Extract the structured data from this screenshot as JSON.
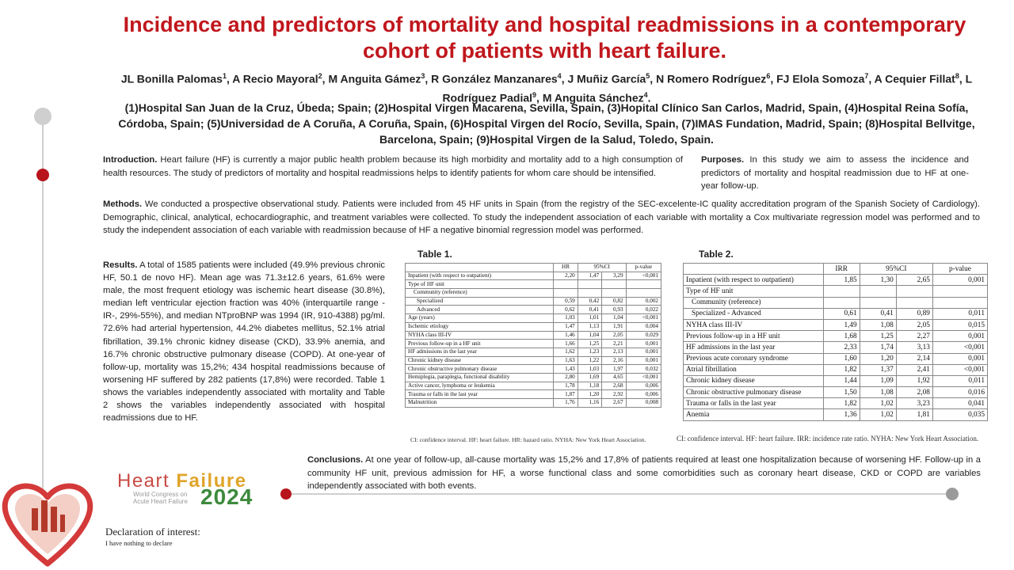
{
  "title": "Incidence and predictors of mortality and hospital readmissions in a contemporary cohort of patients with heart failure.",
  "authors": [
    {
      "name": "JL Bonilla Palomas",
      "sup": "1"
    },
    {
      "name": "A Recio Mayoral",
      "sup": "2"
    },
    {
      "name": "M Anguita Gámez",
      "sup": "3"
    },
    {
      "name": "R González Manzanares",
      "sup": "4"
    },
    {
      "name": "J Muñiz García",
      "sup": "5"
    },
    {
      "name": "N Romero Rodríguez",
      "sup": "6"
    },
    {
      "name": "FJ Elola Somoza",
      "sup": "7"
    },
    {
      "name": "A Cequier Fillat",
      "sup": "8"
    },
    {
      "name": "L Rodríguez Padial",
      "sup": "9"
    },
    {
      "name": "M Anguita Sánchez",
      "sup": "4"
    }
  ],
  "affiliations": "(1)Hospital San Juan de la Cruz, Úbeda; Spain; (2)Hospital Virgen Macarena, Sevilla, Spain, (3)Hopital Clínico San Carlos, Madrid, Spain, (4)Hospital Reina Sofía, Córdoba, Spain; (5)Universidad de A Coruña, A Coruña, Spain, (6)Hospital Virgen del Rocío, Sevilla, Spain, (7)IMAS Fundation, Madrid, Spain; (8)Hospital Bellvitge, Barcelona, Spain; (9)Hospital Virgen de la Salud, Toledo, Spain.",
  "introduction": {
    "heading": "Introduction.",
    "text": "Heart failure (HF) is currently a major public health problem because its high morbidity and mortality add to a high consumption of health resources. The study of predictors of mortality and hospital readmissions helps to identify patients for whom care should be intensified."
  },
  "purposes": {
    "heading": "Purposes.",
    "text": "In this study we aim to assess the incidence and predictors of mortality and hospital readmission due to HF at one-year follow-up."
  },
  "methods": {
    "heading": "Methods.",
    "text": "We conducted a prospective observational study. Patients were included from 45 HF units in Spain (from the registry of the SEC-excelente-IC quality accreditation program of the Spanish Society of Cardiology). Demographic, clinical, analytical, echocardiographic, and treatment variables were collected. To study the independent association of each variable with mortality a Cox multivariate regression model was performed and to study the independent association of each variable with readmission because of HF a negative binomial regression model was performed."
  },
  "results": {
    "heading": "Results.",
    "text": "A total of 1585 patients were included (49.9% previous chronic HF, 50.1 de novo HF). Mean age was 71.3±12.6 years, 61.6% were male, the most frequent etiology was ischemic heart disease (30.8%), median left ventricular ejection fraction was 40% (interquartile range -IR-, 29%-55%), and median NTproBNP was 1994 (IR, 910-4388) pg/ml. 72.6% had arterial hypertension, 44.2% diabetes mellitus, 52.1% atrial fibrillation, 39.1% chronic kidney disease (CKD), 33.9% anemia, and 16.7% chronic obstructive pulmonary disease (COPD). At one-year of follow-up, mortality was 15,2%; 434 hospital readmissions because of worsening HF suffered by 282 patients (17,8%) were recorded. Table 1 shows the variables independently associated with mortality and Table 2 shows the variables independently associated with hospital readmissions due to HF."
  },
  "table1": {
    "caption": "Table 1.",
    "headers": [
      "",
      "HR",
      "95%CI",
      "p-value"
    ],
    "rows": [
      {
        "label": "Inpatient (with respect to outpatient)",
        "indent": 0,
        "v": [
          "2,20",
          "1,47",
          "3,29",
          "<0,001"
        ]
      },
      {
        "label": "Type of HF unit",
        "indent": 0,
        "v": [
          "",
          "",
          "",
          ""
        ]
      },
      {
        "label": "Community (reference)",
        "indent": 1,
        "v": [
          "",
          "",
          "",
          ""
        ]
      },
      {
        "label": "Specialized",
        "indent": 2,
        "v": [
          "0,59",
          "0,42",
          "0,82",
          "0,002"
        ]
      },
      {
        "label": "Advanced",
        "indent": 2,
        "v": [
          "0,62",
          "0,41",
          "0,93",
          "0,022"
        ]
      },
      {
        "label": "Age (years)",
        "indent": 0,
        "v": [
          "1,03",
          "1,01",
          "1,04",
          "<0,001"
        ]
      },
      {
        "label": "Ischemic etiology",
        "indent": 0,
        "v": [
          "1,47",
          "1,13",
          "1,91",
          "0,004"
        ]
      },
      {
        "label": "NYHA class III-IV",
        "indent": 0,
        "v": [
          "1,46",
          "1,04",
          "2,05",
          "0,029"
        ]
      },
      {
        "label": "Previous follow-up in a HF unit",
        "indent": 0,
        "v": [
          "1,66",
          "1,25",
          "2,21",
          "0,001"
        ]
      },
      {
        "label": "HF admissions in the last year",
        "indent": 0,
        "v": [
          "1,62",
          "1,23",
          "2,13",
          "0,001"
        ]
      },
      {
        "label": "Chronic kidney disease",
        "indent": 0,
        "v": [
          "1,63",
          "1,22",
          "2,16",
          "0,001"
        ]
      },
      {
        "label": "Chronic obstructive pulmonary disease",
        "indent": 0,
        "v": [
          "1,43",
          "1,03",
          "1,97",
          "0,032"
        ]
      },
      {
        "label": "Hemiplegia, paraplegia, functional disability",
        "indent": 0,
        "v": [
          "2,80",
          "1,69",
          "4,65",
          "<0,001"
        ]
      },
      {
        "label": "Active cancer, lymphoma or leukemia",
        "indent": 0,
        "v": [
          "1,78",
          "1,18",
          "2,68",
          "0,006"
        ]
      },
      {
        "label": "Trauma or falls in the last year",
        "indent": 0,
        "v": [
          "1,87",
          "1,20",
          "2,92",
          "0,006"
        ]
      },
      {
        "label": "Malnutrition",
        "indent": 0,
        "v": [
          "1,76",
          "1,16",
          "2,67",
          "0,008"
        ]
      }
    ],
    "note": "CI: confidence interval. HF: heart failure. HR: hazard ratio. NYHA: New York Heart Association."
  },
  "table2": {
    "caption": "Table 2.",
    "headers": [
      "",
      "IRR",
      "95%CI",
      "p-value"
    ],
    "rows": [
      {
        "label": "Inpatient (with respect to outpatient)",
        "indent": 0,
        "v": [
          "1,85",
          "1,30",
          "2,65",
          "0,001"
        ]
      },
      {
        "label": "Type of HF unit",
        "indent": 0,
        "v": [
          "",
          "",
          "",
          ""
        ]
      },
      {
        "label": "Community (reference)",
        "indent": 1,
        "v": [
          "",
          "",
          "",
          ""
        ]
      },
      {
        "label": "Specialized - Advanced",
        "indent": 1,
        "v": [
          "0,61",
          "0,41",
          "0,89",
          "0,011"
        ]
      },
      {
        "label": "NYHA class III-IV",
        "indent": 0,
        "v": [
          "1,49",
          "1,08",
          "2,05",
          "0,015"
        ]
      },
      {
        "label": "Previous follow-up in a HF unit",
        "indent": 0,
        "v": [
          "1,68",
          "1,25",
          "2,27",
          "0,001"
        ]
      },
      {
        "label": "HF admissions in the last year",
        "indent": 0,
        "v": [
          "2,33",
          "1,74",
          "3,13",
          "<0,001"
        ]
      },
      {
        "label": "Previous acute coronary syndrome",
        "indent": 0,
        "v": [
          "1,60",
          "1,20",
          "2,14",
          "0,001"
        ]
      },
      {
        "label": "Atrial fibrillation",
        "indent": 0,
        "v": [
          "1,82",
          "1,37",
          "2,41",
          "<0,001"
        ]
      },
      {
        "label": "Chronic kidney disease",
        "indent": 0,
        "v": [
          "1,44",
          "1,09",
          "1,92",
          "0,011"
        ]
      },
      {
        "label": "Chronic obstructive pulmonary disease",
        "indent": 0,
        "v": [
          "1,50",
          "1,08",
          "2,08",
          "0,016"
        ]
      },
      {
        "label": "Trauma or falls in the last year",
        "indent": 0,
        "v": [
          "1,82",
          "1,02",
          "3,23",
          "0,041"
        ]
      },
      {
        "label": "Anemia",
        "indent": 0,
        "v": [
          "1,36",
          "1,02",
          "1,81",
          "0,035"
        ]
      }
    ],
    "note": "CI: confidence interval. HF: heart failure. IRR: incidence rate ratio. NYHA: New York Heart Association."
  },
  "conclusions": {
    "heading": "Conclusions.",
    "text": "At one year of follow-up, all-cause mortality was 15,2% and 17,8% of patients required at least one hospitalization because of worsening HF. Follow-up in a community HF unit, previous admission for HF, a worse functional class and some comorbidities such as coronary heart disease, CKD or COPD are variables independently associated with both events."
  },
  "logo": {
    "word1": "Heart",
    "word2": "Failure",
    "sub1": "World Congress on",
    "sub2": "Acute Heart Failure",
    "year": "2024"
  },
  "declaration": {
    "title": "Declaration of interest:",
    "text": "I have nothing to declare"
  },
  "colors": {
    "title_red": "#c0171d",
    "accent_red": "#b8141c",
    "timeline_grey": "#cfcfcf",
    "logo_green": "#3d8a3d",
    "logo_gold": "#e0a42a"
  }
}
